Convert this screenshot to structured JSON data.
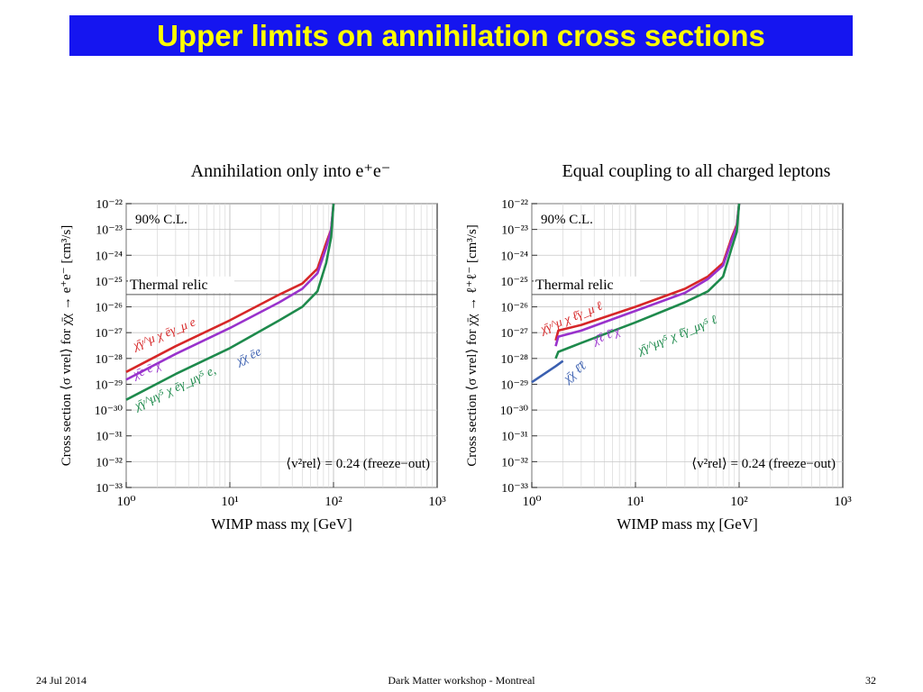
{
  "slide": {
    "title": "Upper limits on annihilation cross sections",
    "footer": {
      "date": "24 Jul 2014",
      "event": "Dark Matter workshop - Montreal",
      "page": "32"
    }
  },
  "chart_data": [
    {
      "type": "line",
      "title": "Annihilation only into e⁺e⁻",
      "xlabel": "WIMP mass mχ [GeV]",
      "ylabel": "Cross section ⟨σ vrel⟩ for χ̄χ → e⁺e⁻ [cm³/s]",
      "xscale": "log",
      "yscale": "log",
      "xlim": [
        1,
        1000
      ],
      "ylim": [
        1e-33,
        1e-22
      ],
      "xticks": [
        "10⁰",
        "10¹",
        "10²",
        "10³"
      ],
      "yticks": [
        "10⁻²²",
        "10⁻²³",
        "10⁻²⁴",
        "10⁻²⁵",
        "10⁻²⁶",
        "10⁻²⁷",
        "10⁻²⁸",
        "10⁻²⁹",
        "10⁻³⁰",
        "10⁻³¹",
        "10⁻³²",
        "10⁻³³"
      ],
      "grid": true,
      "annotations": [
        "90% C.L.",
        "Thermal relic",
        "⟨v²rel⟩ = 0.24 (freeze−out)"
      ],
      "thermal_relic": 3e-26,
      "series": [
        {
          "name": "χ̄γ^μ χ ēγ_μ e",
          "color": "#d62728",
          "x": [
            1,
            3,
            10,
            30,
            50,
            70,
            85,
            95,
            100
          ],
          "y": [
            3e-29,
            3e-28,
            3e-27,
            3e-26,
            8e-26,
            3e-25,
            3e-24,
            1e-23,
            1e-22
          ]
        },
        {
          "name": "χ̄e ēχ",
          "color": "#9932cc",
          "x": [
            1,
            3,
            10,
            30,
            50,
            70,
            85,
            95,
            100
          ],
          "y": [
            1.5e-29,
            1.5e-28,
            1.5e-27,
            1.5e-26,
            5e-26,
            2e-25,
            2e-24,
            1e-23,
            1e-22
          ]
        },
        {
          "name": "χ̄γ^μγ⁵ χ ēγ_μγ⁵ e,  χ̄χ ēe",
          "color": "#1e8a4c",
          "x": [
            1,
            3,
            10,
            30,
            50,
            70,
            85,
            95,
            100
          ],
          "y": [
            2.5e-30,
            2.5e-29,
            2.5e-28,
            3e-27,
            1e-26,
            4e-26,
            5e-25,
            5e-24,
            1e-22
          ]
        }
      ],
      "series_labels": [
        {
          "text": "χ̄γ^μ χ ēγ_μ e",
          "color": "#d62728"
        },
        {
          "text": "χ̄e ē χ",
          "color": "#9932cc"
        },
        {
          "text": "χ̄γ^μγ⁵ χ ēγ_μγ⁵ e,",
          "color": "#1e8a4c"
        },
        {
          "text": "χ̄χ ēe",
          "color": "#3a5fb0"
        }
      ]
    },
    {
      "type": "line",
      "title": "Equal coupling to all charged leptons",
      "xlabel": "WIMP mass mχ [GeV]",
      "ylabel": "Cross section ⟨σ vrel⟩ for χ̄χ → ℓ⁺ℓ⁻ [cm³/s]",
      "xscale": "log",
      "yscale": "log",
      "xlim": [
        1,
        1000
      ],
      "ylim": [
        1e-33,
        1e-22
      ],
      "xticks": [
        "10⁰",
        "10¹",
        "10²",
        "10³"
      ],
      "yticks": [
        "10⁻²²",
        "10⁻²³",
        "10⁻²⁴",
        "10⁻²⁵",
        "10⁻²⁶",
        "10⁻²⁷",
        "10⁻²⁸",
        "10⁻²⁹",
        "10⁻³⁰",
        "10⁻³¹",
        "10⁻³²",
        "10⁻³³"
      ],
      "grid": true,
      "annotations": [
        "90% C.L.",
        "Thermal relic",
        "⟨v²rel⟩ = 0.24 (freeze−out)"
      ],
      "thermal_relic": 3e-26,
      "series": [
        {
          "name": "χ̄γ^μ χ ℓ̄γ_μ ℓ",
          "color": "#d62728",
          "x": [
            1.7,
            1.8,
            3,
            10,
            30,
            50,
            70,
            85,
            95,
            100
          ],
          "y": [
            5e-28,
            1.2e-27,
            2e-27,
            1e-26,
            5e-26,
            1.5e-25,
            5e-25,
            5e-24,
            1.5e-23,
            1e-22
          ]
        },
        {
          "name": "χ̄ℓ ℓ̄χ",
          "color": "#9932cc",
          "x": [
            1.7,
            1.8,
            3,
            10,
            30,
            50,
            70,
            85,
            95,
            100
          ],
          "y": [
            3e-28,
            7e-28,
            1.2e-27,
            7e-27,
            3.5e-26,
            1.2e-25,
            4e-25,
            4e-24,
            1.3e-23,
            1e-22
          ]
        },
        {
          "name": "χ̄χ ℓ̄ℓ",
          "color": "#3a5fb0",
          "x": [
            1,
            1.7,
            2
          ],
          "y": [
            1.2e-29,
            5e-29,
            8e-29
          ]
        },
        {
          "name": "χ̄γ^μγ⁵ χ ℓ̄γ_μγ⁵ ℓ",
          "color": "#1e8a4c",
          "x": [
            1.7,
            1.8,
            3,
            10,
            30,
            50,
            70,
            85,
            95,
            100
          ],
          "y": [
            1e-28,
            1.8e-28,
            4e-28,
            2.5e-27,
            1.5e-26,
            4e-26,
            1.5e-25,
            2e-24,
            8e-24,
            1e-22
          ]
        }
      ],
      "series_labels": [
        {
          "text": "χ̄γ^μ χ ℓ̄γ_μ ℓ",
          "color": "#d62728"
        },
        {
          "text": "χ̄ℓ ℓ̄ χ",
          "color": "#9932cc"
        },
        {
          "text": "χ̄χ ℓ̄ℓ",
          "color": "#3a5fb0"
        },
        {
          "text": "χ̄γ^μγ⁵ χ ℓ̄γ_μγ⁵ ℓ",
          "color": "#1e8a4c"
        }
      ]
    }
  ]
}
